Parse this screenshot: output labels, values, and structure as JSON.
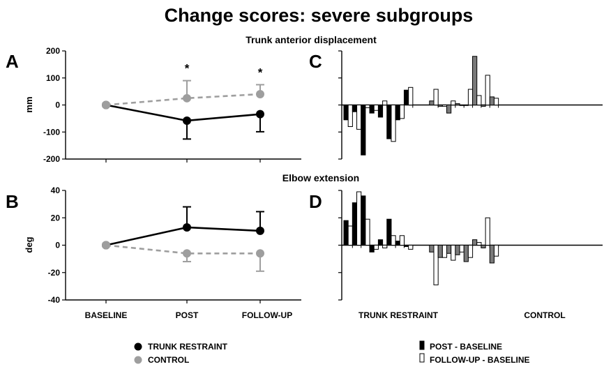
{
  "figure": {
    "title": "Change scores: severe subgroups",
    "colors": {
      "trunk": "#000000",
      "control": "#9e9e9e",
      "post_bar": "#000000",
      "post_bar_control": "#7a7a7a",
      "followup_bar": "#ffffff"
    }
  },
  "chart_data": [
    {
      "panel": "A",
      "type": "line",
      "title": "Trunk anterior displacement",
      "ylabel": "mm",
      "ylim": [
        -200,
        200
      ],
      "yticks": [
        -200,
        -100,
        0,
        100,
        200
      ],
      "categories": [
        "BASELINE",
        "POST",
        "FOLLOW-UP"
      ],
      "series": [
        {
          "name": "TRUNK RESTRAINT",
          "values": [
            0,
            -58,
            -34
          ],
          "error_lower": [
            0,
            68,
            65
          ],
          "line": "solid",
          "color": "#000000"
        },
        {
          "name": "CONTROL",
          "values": [
            0,
            25,
            40
          ],
          "error_upper": [
            0,
            65,
            35
          ],
          "line": "dashed",
          "color": "#9e9e9e"
        }
      ],
      "annotations": [
        {
          "category": "POST",
          "text": "*"
        },
        {
          "category": "FOLLOW-UP",
          "text": "*"
        }
      ]
    },
    {
      "panel": "B",
      "type": "line",
      "title": "Elbow extension",
      "ylabel": "deg",
      "ylim": [
        -40,
        40
      ],
      "yticks": [
        -40,
        -20,
        0,
        20,
        40
      ],
      "categories": [
        "BASELINE",
        "POST",
        "FOLLOW-UP"
      ],
      "series": [
        {
          "name": "TRUNK RESTRAINT",
          "values": [
            0,
            13,
            10.5
          ],
          "error_upper": [
            0,
            15,
            14
          ],
          "line": "solid",
          "color": "#000000"
        },
        {
          "name": "CONTROL",
          "values": [
            0,
            -6,
            -6
          ],
          "error_lower": [
            0,
            6,
            13
          ],
          "line": "dashed",
          "color": "#9e9e9e"
        }
      ]
    },
    {
      "panel": "C",
      "type": "bar",
      "ylim": [
        -200,
        200
      ],
      "groups": [
        {
          "label": "TRUNK RESTRAINT",
          "post": [
            -55,
            -25,
            -185,
            -30,
            -45,
            -125,
            -55,
            55
          ],
          "followup": [
            -80,
            -90,
            -10,
            -20,
            15,
            -135,
            -50,
            65
          ]
        },
        {
          "label": "CONTROL",
          "post": [
            15,
            -5,
            -30,
            5,
            0,
            180,
            -5,
            30
          ],
          "followup": [
            58,
            -5,
            15,
            0,
            58,
            35,
            110,
            25
          ]
        }
      ]
    },
    {
      "panel": "D",
      "type": "bar",
      "ylim": [
        -40,
        40
      ],
      "groups": [
        {
          "label": "TRUNK RESTRAINT",
          "post": [
            18,
            31,
            36,
            -5,
            4,
            19,
            3,
            -1
          ],
          "followup": [
            14,
            39,
            19,
            -3,
            -2,
            7,
            7,
            -3
          ]
        },
        {
          "label": "CONTROL",
          "post": [
            -5,
            -9,
            -6,
            -7,
            -12,
            4,
            -2,
            -13
          ],
          "followup": [
            -29,
            -9,
            -11,
            -5,
            -9,
            2,
            20,
            -8
          ]
        }
      ]
    }
  ],
  "legend_lines": [
    {
      "label": "TRUNK RESTRAINT",
      "color": "#000000"
    },
    {
      "label": "CONTROL",
      "color": "#9e9e9e"
    }
  ],
  "legend_bars": [
    {
      "label": "POST - BASELINE",
      "fill": "#000000"
    },
    {
      "label": "FOLLOW-UP - BASELINE",
      "fill": "#ffffff"
    }
  ]
}
